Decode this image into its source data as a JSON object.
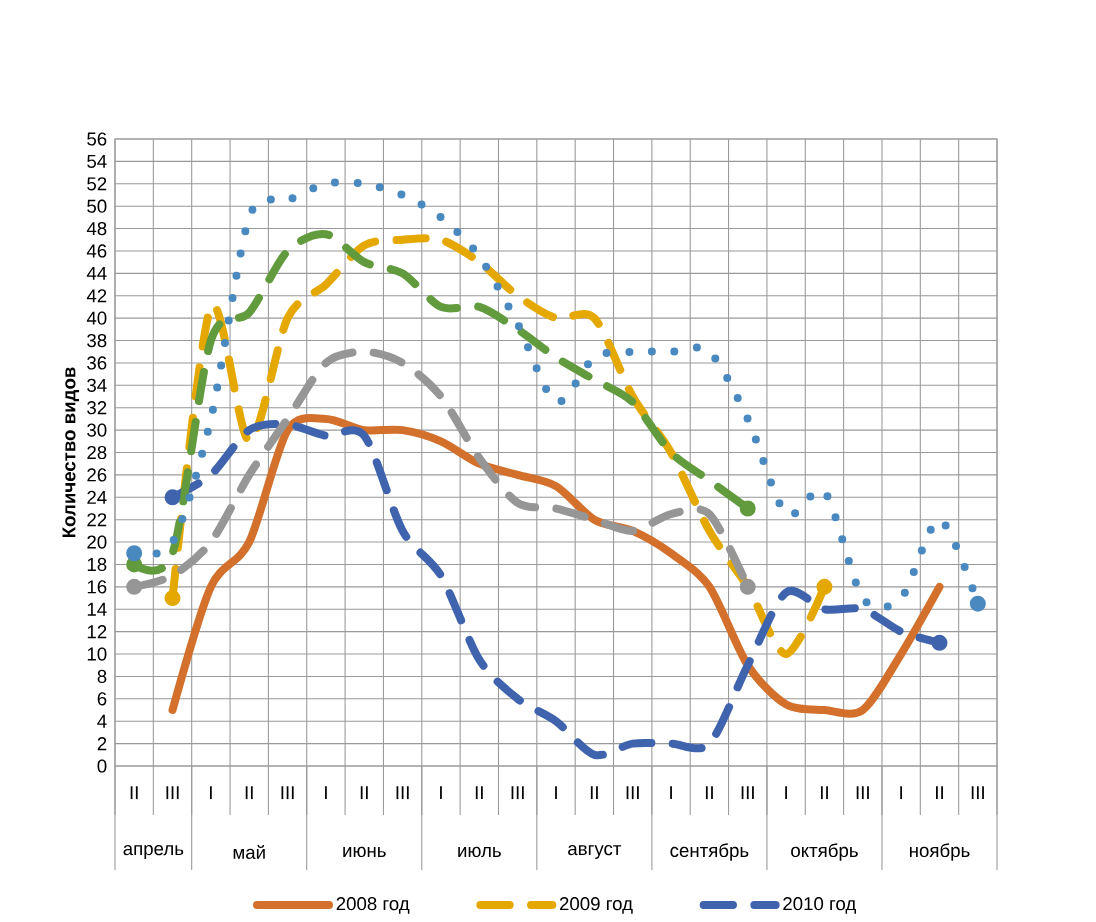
{
  "chart_data": {
    "type": "line",
    "ylabel": "Количество видов",
    "categories": [
      "II",
      "III",
      "I",
      "II",
      "III",
      "I",
      "II",
      "III",
      "I",
      "II",
      "III",
      "I",
      "II",
      "III",
      "I",
      "II",
      "III",
      "I",
      "II",
      "III",
      "I",
      "II",
      "III"
    ],
    "annotations": [
      "апрель",
      "май",
      "июнь",
      "июль",
      "август",
      "сентябрь",
      "октябрь",
      "ноябрь"
    ],
    "ylim": [
      0,
      56
    ],
    "yticks": [
      0,
      2,
      4,
      6,
      8,
      10,
      12,
      14,
      16,
      18,
      20,
      22,
      24,
      26,
      28,
      30,
      32,
      34,
      36,
      38,
      40,
      42,
      44,
      46,
      48,
      50,
      52,
      54,
      56
    ],
    "grid": true,
    "legend": "bottom",
    "series": [
      {
        "name": "2008 год",
        "color": "#d2702c",
        "line_style": "solid",
        "values": [
          null,
          5,
          16,
          20,
          30,
          31,
          30,
          30,
          29,
          27,
          26,
          25,
          22,
          21,
          19,
          16,
          9,
          5.5,
          5,
          5,
          10,
          16,
          null
        ]
      },
      {
        "name": "2009 год",
        "color": "#e5a800",
        "line_style": "dashed",
        "values": [
          null,
          15,
          41,
          29,
          40,
          43,
          46.5,
          47,
          47,
          45,
          42,
          40,
          40,
          33,
          28,
          21,
          16,
          10,
          16,
          null,
          null,
          null,
          null
        ]
      },
      {
        "name": "2010 год",
        "color": "#3f64ad",
        "line_style": "dashed",
        "values": [
          null,
          24,
          26,
          30,
          30.5,
          29.5,
          29.5,
          21,
          17,
          9.5,
          6,
          4,
          1,
          2,
          2,
          2,
          9,
          15.5,
          14,
          14,
          12,
          11,
          null
        ]
      },
      {
        "color": "#969696",
        "line_style": "dashed",
        "values": [
          16,
          17,
          20,
          26,
          31,
          36,
          37,
          36,
          33,
          27.5,
          23.5,
          23,
          22,
          21,
          22.5,
          22.5,
          16,
          null,
          null,
          null,
          null,
          null,
          null
        ]
      },
      {
        "color": "#629a3e",
        "line_style": "dashed",
        "values": [
          18,
          19,
          38,
          40.5,
          46,
          47.5,
          45,
          44,
          41,
          41,
          39,
          36.5,
          34.5,
          32.5,
          28,
          25.5,
          23,
          null,
          null,
          null,
          null,
          null,
          null
        ]
      },
      {
        "color": "#4a89c0",
        "line_style": "dotted",
        "values": [
          19,
          20,
          31,
          49,
          50.5,
          52,
          52,
          51,
          49,
          45.5,
          39.5,
          32.5,
          36.5,
          37,
          37,
          37,
          31,
          22.5,
          24.5,
          15,
          15,
          22,
          14.5
        ]
      }
    ]
  }
}
